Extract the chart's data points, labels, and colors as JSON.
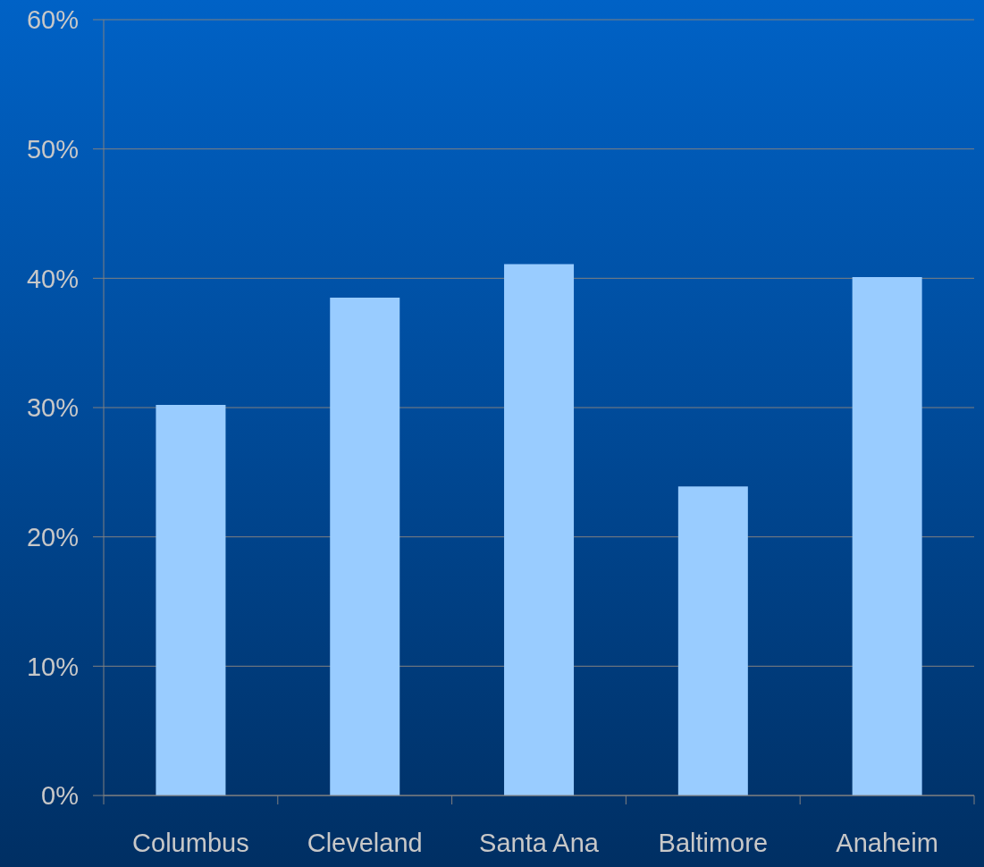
{
  "chart_data": {
    "type": "bar",
    "categories": [
      "Columbus",
      "Cleveland",
      "Santa Ana",
      "Baltimore",
      "Anaheim"
    ],
    "values": [
      30.2,
      38.5,
      41.1,
      23.9,
      40.1
    ],
    "color": "#99ccff",
    "ylim": [
      0,
      60
    ],
    "yticks": [
      {
        "value": 0,
        "label": "0%"
      },
      {
        "value": 10,
        "label": "10%"
      },
      {
        "value": 20,
        "label": "20%"
      },
      {
        "value": 30,
        "label": "30%"
      },
      {
        "value": 40,
        "label": "40%"
      },
      {
        "value": 50,
        "label": "50%"
      },
      {
        "value": 60,
        "label": "60%"
      }
    ],
    "grid": "y"
  }
}
